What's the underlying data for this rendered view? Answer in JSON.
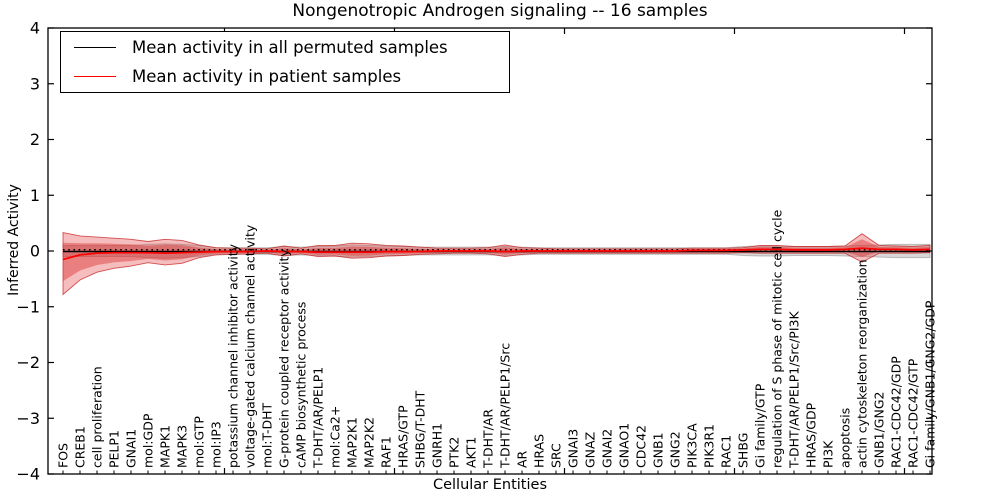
{
  "title": "Nongenotropic Androgen signaling -- 16 samples",
  "legend": {
    "items": [
      {
        "label": "Mean activity in all permuted samples",
        "color": "#000000"
      },
      {
        "label": "Mean activity in patient samples",
        "color": "#ff0000"
      }
    ]
  },
  "chart_data": {
    "type": "line",
    "title": "Nongenotropic Androgen signaling -- 16 samples",
    "xlabel": "Cellular Entities",
    "ylabel": "Inferred Activity",
    "ylim": [
      -4,
      4
    ],
    "yticks": [
      -4,
      -3,
      -2,
      -1,
      0,
      1,
      2,
      3,
      4
    ],
    "grid": false,
    "legend_position": "upper left",
    "categories": [
      "FOS",
      "CREB1",
      "cell proliferation",
      "PELP1",
      "GNAI1",
      "mol:GDP",
      "MAPK1",
      "MAPK3",
      "mol:GTP",
      "mol:IP3",
      "potassium channel inhibitor activity",
      "voltage-gated calcium channel activity",
      "mol:T-DHT",
      "G-protein coupled receptor activity",
      "cAMP biosynthetic process",
      "T-DHT/AR/PELP1",
      "mol:Ca2+",
      "MAP2K1",
      "MAP2K2",
      "RAF1",
      "HRAS/GTP",
      "SHBG/T-DHT",
      "GNRH1",
      "PTK2",
      "AKT1",
      "T-DHT/AR",
      "T-DHT/AR/PELP1/Src",
      "AR",
      "HRAS",
      "SRC",
      "GNAI3",
      "GNAZ",
      "GNAI2",
      "GNAO1",
      "CDC42",
      "GNB1",
      "GNG2",
      "PIK3CA",
      "PIK3R1",
      "RAC1",
      "SHBG",
      "Gi family/GTP",
      "regulation of S phase of mitotic cell cycle",
      "T-DHT/AR/PELP1/Src/PI3K",
      "HRAS/GDP",
      "PI3K",
      "apoptosis",
      "actin cytoskeleton reorganization",
      "GNB1/GNG2",
      "RAC1-CDC42/GDP",
      "RAC1-CDC42/GTP",
      "Gi family/GNB1/GNG2/GDP"
    ],
    "series": [
      {
        "name": "Mean activity in all permuted samples",
        "color": "#000000",
        "style": "solid",
        "values": 0
      },
      {
        "name": "zero reference",
        "color": "#000000",
        "style": "dotted",
        "values": 0
      },
      {
        "name": "Mean activity in patient samples",
        "color": "#ff0000",
        "style": "solid",
        "values": [
          -0.15,
          -0.07,
          -0.04,
          -0.03,
          -0.03,
          -0.03,
          -0.04,
          -0.03,
          -0.02,
          -0.01,
          -0.01,
          -0.01,
          0,
          -0.01,
          -0.01,
          -0.02,
          -0.02,
          -0.02,
          -0.02,
          -0.01,
          -0.01,
          -0.01,
          0,
          0,
          0,
          0,
          -0.01,
          0,
          0,
          0,
          0,
          0,
          0,
          0,
          0,
          0,
          0,
          0.01,
          0.01,
          0.01,
          0.02,
          0.03,
          0.03,
          0.02,
          0.02,
          0.02,
          0.03,
          0.05,
          0.03,
          0.03,
          0.02,
          0.03
        ]
      }
    ],
    "bands": [
      {
        "name": "permuted-std-band",
        "type": "half_width",
        "fill": "rgba(135,135,135,0.32)",
        "stroke": "rgba(120,120,120,0.45)",
        "half_width": [
          0.1,
          0.1,
          0.1,
          0.1,
          0.1,
          0.12,
          0.13,
          0.12,
          0.1,
          0.06,
          0.06,
          0.06,
          0.06,
          0.08,
          0.07,
          0.08,
          0.09,
          0.11,
          0.1,
          0.09,
          0.08,
          0.07,
          0.07,
          0.07,
          0.07,
          0.07,
          0.08,
          0.07,
          0.06,
          0.06,
          0.06,
          0.06,
          0.06,
          0.06,
          0.06,
          0.06,
          0.06,
          0.06,
          0.06,
          0.06,
          0.08,
          0.09,
          0.09,
          0.08,
          0.08,
          0.08,
          0.09,
          0.1,
          0.11,
          0.12,
          0.12,
          0.12
        ]
      },
      {
        "name": "patient-std-band",
        "type": "explicit",
        "fill": "rgba(227,66,66,0.35)",
        "stroke": "rgba(198,34,34,0.75)",
        "upper": [
          0.33,
          0.27,
          0.25,
          0.23,
          0.21,
          0.17,
          0.21,
          0.19,
          0.11,
          0.06,
          0.05,
          0.05,
          0.04,
          0.09,
          0.05,
          0.1,
          0.1,
          0.14,
          0.13,
          0.1,
          0.09,
          0.07,
          0.05,
          0.05,
          0.05,
          0.06,
          0.11,
          0.06,
          0.05,
          0.04,
          0.04,
          0.04,
          0.04,
          0.04,
          0.04,
          0.04,
          0.04,
          0.05,
          0.05,
          0.05,
          0.06,
          0.1,
          0.1,
          0.08,
          0.08,
          0.08,
          0.09,
          0.31,
          0.1,
          0.09,
          0.08,
          0.1
        ],
        "lower": [
          -0.78,
          -0.52,
          -0.38,
          -0.31,
          -0.27,
          -0.21,
          -0.25,
          -0.22,
          -0.12,
          -0.07,
          -0.06,
          -0.05,
          -0.04,
          -0.09,
          -0.05,
          -0.1,
          -0.09,
          -0.13,
          -0.12,
          -0.09,
          -0.08,
          -0.06,
          -0.05,
          -0.04,
          -0.04,
          -0.05,
          -0.1,
          -0.06,
          -0.04,
          -0.04,
          -0.04,
          -0.04,
          -0.04,
          -0.04,
          -0.04,
          -0.04,
          -0.04,
          -0.04,
          -0.04,
          -0.04,
          -0.03,
          -0.04,
          -0.04,
          -0.04,
          -0.04,
          -0.04,
          -0.04,
          -0.2,
          -0.04,
          -0.04,
          -0.04,
          -0.03
        ]
      },
      {
        "name": "patient-std-band-inner",
        "type": "scaled",
        "derived_from": "patient-std-band",
        "mean_series": "Mean activity in patient samples",
        "scale": 0.62,
        "fill": "rgba(216,40,40,0.42)",
        "stroke": "none"
      }
    ]
  }
}
